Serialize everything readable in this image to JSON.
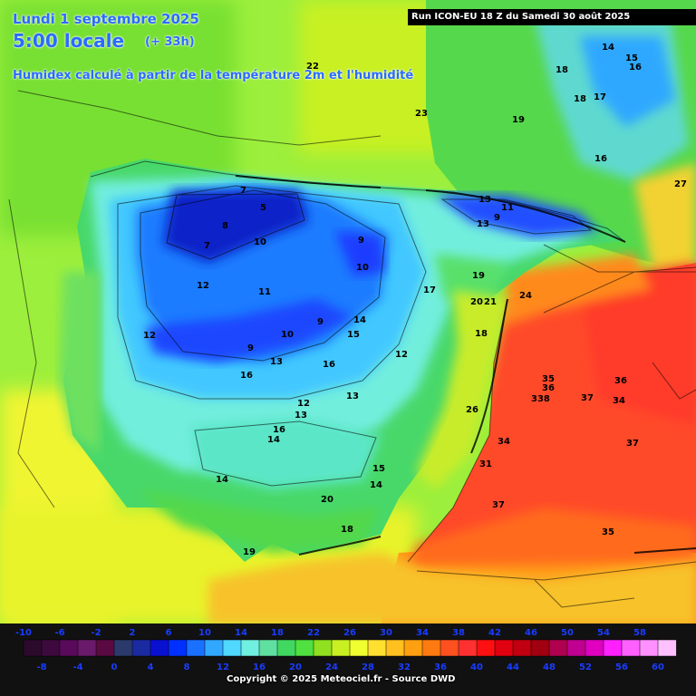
{
  "header": {
    "date": "Lundi 1 septembre 2025",
    "time": "5:00 locale",
    "offset": "(+ 33h)",
    "description": "Humidex calculé à partir de la température 2m et l'humidité",
    "run": "Run ICON-EU 18 Z du Samedi 30 août 2025"
  },
  "footer": {
    "copyright": "Copyright © 2025 Meteociel.fr - Source DWD"
  },
  "legend": {
    "top_labels": [
      "-10",
      "-6",
      "-2",
      "2",
      "6",
      "10",
      "14",
      "18",
      "22",
      "26",
      "30",
      "34",
      "38",
      "42",
      "46",
      "50",
      "54",
      "58"
    ],
    "bottom_labels": [
      "-8",
      "-4",
      "0",
      "4",
      "8",
      "12",
      "16",
      "20",
      "24",
      "28",
      "32",
      "36",
      "40",
      "44",
      "48",
      "52",
      "56",
      "60"
    ],
    "colors": [
      "#2c0a2c",
      "#3d0a3d",
      "#5a0a5a",
      "#6a1a6a",
      "#5a0a40",
      "#2a3a6a",
      "#1a2aa0",
      "#0a10d0",
      "#0030ff",
      "#1a70ff",
      "#30a8ff",
      "#50d8ff",
      "#70f0e0",
      "#60e0a0",
      "#40d860",
      "#50e040",
      "#90e020",
      "#c8f020",
      "#f0ff30",
      "#ffe030",
      "#ffc020",
      "#ffa010",
      "#ff7a10",
      "#ff5020",
      "#ff3030",
      "#ff1010",
      "#e00010",
      "#c00010",
      "#a00010",
      "#b00050",
      "#c00090",
      "#e000c0",
      "#ff20ff",
      "#ff60ff",
      "#ff90ff",
      "#ffc0ff"
    ]
  },
  "map_values": [
    {
      "t": "22"
    },
    {
      "t": "23"
    },
    {
      "t": "19"
    },
    {
      "t": "18"
    },
    {
      "t": "18"
    },
    {
      "t": "17"
    },
    {
      "t": "14"
    },
    {
      "t": "15"
    },
    {
      "t": "16"
    },
    {
      "t": "16"
    },
    {
      "t": "27"
    },
    {
      "t": "7"
    },
    {
      "t": "5"
    },
    {
      "t": "8"
    },
    {
      "t": "7"
    },
    {
      "t": "10"
    },
    {
      "t": "9"
    },
    {
      "t": "10"
    },
    {
      "t": "12"
    },
    {
      "t": "11"
    },
    {
      "t": "12"
    },
    {
      "t": "10"
    },
    {
      "t": "9"
    },
    {
      "t": "14"
    },
    {
      "t": "15"
    },
    {
      "t": "9"
    },
    {
      "t": "13"
    },
    {
      "t": "16"
    },
    {
      "t": "16"
    },
    {
      "t": "12"
    },
    {
      "t": "13"
    },
    {
      "t": "11"
    },
    {
      "t": "9"
    },
    {
      "t": "13"
    },
    {
      "t": "19"
    },
    {
      "t": "17"
    },
    {
      "t": "20"
    },
    {
      "t": "21"
    },
    {
      "t": "24"
    },
    {
      "t": "18"
    },
    {
      "t": "12"
    },
    {
      "t": "13"
    },
    {
      "t": "16"
    },
    {
      "t": "14"
    },
    {
      "t": "13"
    },
    {
      "t": "15"
    },
    {
      "t": "14"
    },
    {
      "t": "14"
    },
    {
      "t": "20"
    },
    {
      "t": "18"
    },
    {
      "t": "19"
    },
    {
      "t": "26"
    },
    {
      "t": "35"
    },
    {
      "t": "36"
    },
    {
      "t": "338"
    },
    {
      "t": "37"
    },
    {
      "t": "36"
    },
    {
      "t": "34"
    },
    {
      "t": "37"
    },
    {
      "t": "37"
    },
    {
      "t": "35"
    },
    {
      "t": "34"
    },
    {
      "t": "31"
    }
  ]
}
